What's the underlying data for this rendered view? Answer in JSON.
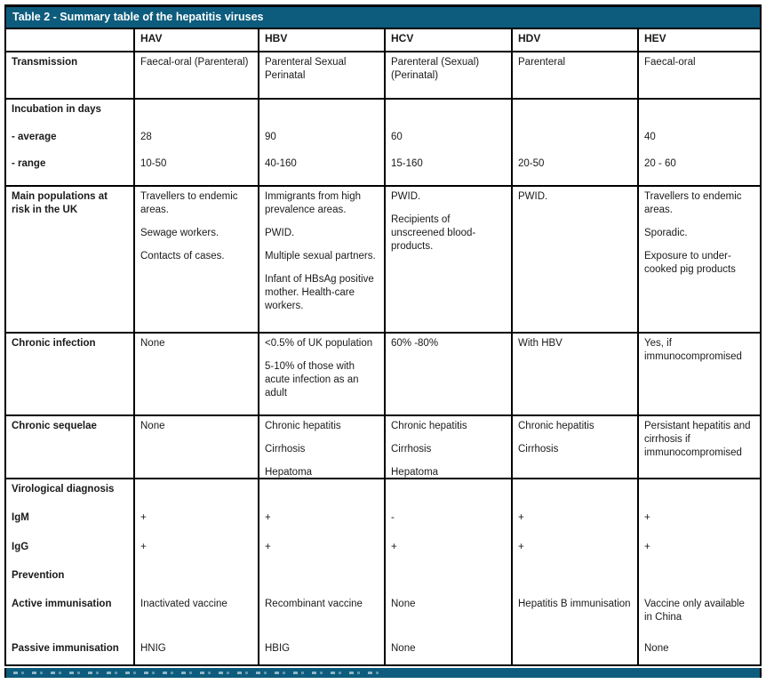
{
  "title_bar": {
    "label": "Table 2 - Summary table of the hepatitis viruses"
  },
  "table": {
    "columns": [
      "",
      "HAV",
      "HBV",
      "HCV",
      "HDV",
      "HEV"
    ],
    "sections": [
      {
        "id": "column-header",
        "kind": "colheader"
      },
      {
        "id": "transmission",
        "kind": "paragraphs",
        "label": "Transmission",
        "cells": [
          [
            "Faecal-oral (Parenteral)"
          ],
          [
            "Parenteral Sexual Perinatal"
          ],
          [
            "Parenteral (Sexual) (Perinatal)"
          ],
          [
            "Parenteral"
          ],
          [
            "Faecal-oral"
          ]
        ]
      },
      {
        "id": "incubation",
        "kind": "subrows",
        "subrows": [
          {
            "label": "Incubation in days",
            "values": [
              "",
              "",
              "",
              "",
              ""
            ]
          },
          {
            "label": "- average",
            "values": [
              "28",
              "90",
              "60",
              "",
              "40"
            ]
          },
          {
            "label": "- range",
            "values": [
              "10-50",
              "40-160",
              "15-160",
              "20-50",
              "20 - 60"
            ]
          }
        ]
      },
      {
        "id": "main-populations-at-risk",
        "kind": "paragraphs",
        "label": "Main populations at risk in the UK",
        "cells": [
          [
            "Travellers to endemic areas.",
            "Sewage workers.",
            "Contacts of cases."
          ],
          [
            "Immigrants from high prevalence areas.",
            "PWID.",
            "Multiple sexual partners.",
            "Infant of HBsAg positive mother. Health-care workers."
          ],
          [
            "PWID.",
            "Recipients of unscreened blood-products."
          ],
          [
            "PWID."
          ],
          [
            "Travellers to endemic areas.",
            "Sporadic.",
            "Exposure to under-cooked pig products"
          ]
        ]
      },
      {
        "id": "chronic-infection",
        "kind": "paragraphs",
        "label": "Chronic infection",
        "cells": [
          [
            "None"
          ],
          [
            "<0.5% of UK population",
            "5-10% of those with acute infection as an adult"
          ],
          [
            "60% -80%"
          ],
          [
            "With HBV"
          ],
          [
            "Yes, if immunocompromised"
          ]
        ]
      },
      {
        "id": "chronic-sequelae",
        "kind": "paragraphs",
        "label": "Chronic sequelae",
        "cells": [
          [
            "None"
          ],
          [
            "Chronic hepatitis",
            "Cirrhosis",
            "Hepatoma"
          ],
          [
            "Chronic hepatitis",
            "Cirrhosis",
            "Hepatoma"
          ],
          [
            "Chronic hepatitis",
            "Cirrhosis"
          ],
          [
            "Persistant hepatitis and cirrhosis if immunocompromised"
          ]
        ]
      },
      {
        "id": "virological-diagnosis-prevention",
        "kind": "subrows",
        "subrows": [
          {
            "label": "Virological diagnosis",
            "values": [
              "",
              "",
              "",
              "",
              ""
            ]
          },
          {
            "label": "IgM",
            "values": [
              "+",
              "+",
              "-",
              "+",
              "+"
            ]
          },
          {
            "label": "IgG",
            "values": [
              "+",
              "+",
              "+",
              "+",
              "+"
            ]
          },
          {
            "label": "Prevention",
            "values": [
              "",
              "",
              "",
              "",
              ""
            ]
          },
          {
            "label": "Active immunisation",
            "values": [
              "Inactivated vaccine",
              "Recombinant vaccine",
              "None",
              "Hepatitis B immunisation",
              "Vaccine only available in China"
            ]
          },
          {
            "label": "Passive immunisation",
            "values": [
              "HNIG",
              "HBIG",
              "None",
              "",
              "None"
            ]
          }
        ]
      }
    ]
  }
}
